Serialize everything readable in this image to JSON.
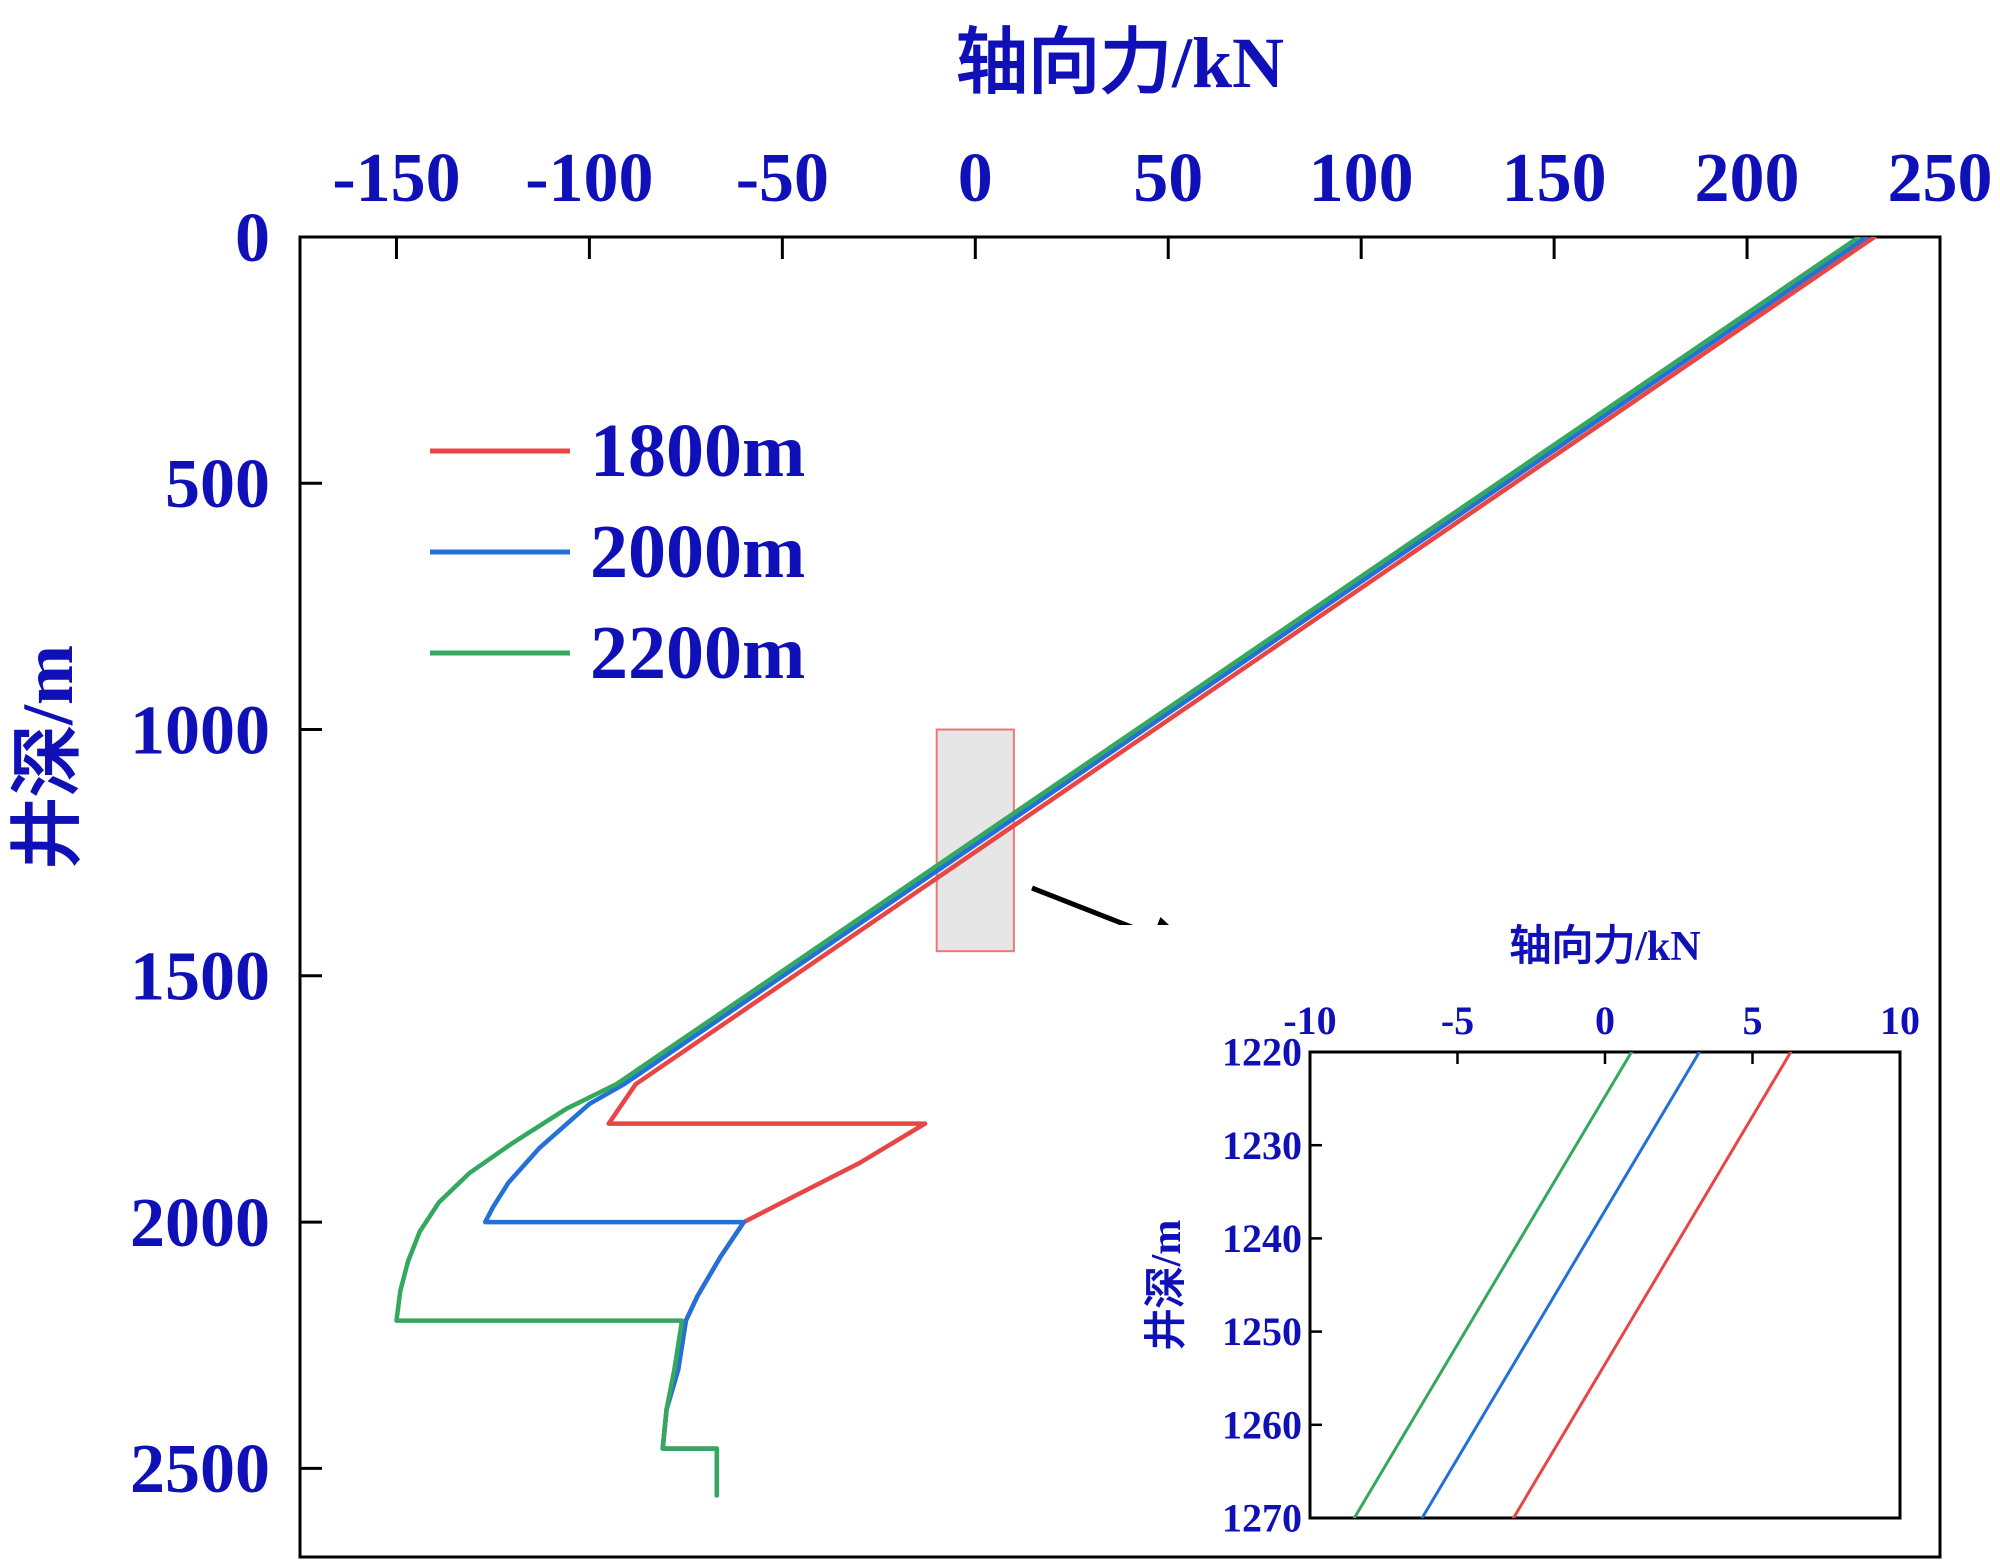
{
  "colors": {
    "axis_text": "#1010b8",
    "axis_line": "#000000",
    "series_1800": "#e84545",
    "series_2000": "#2370d8",
    "series_2200": "#35a860",
    "highlight_fill": "#e6e6e6",
    "highlight_stroke": "#ee7777",
    "arrow": "#000000"
  },
  "chart_data": [
    {
      "type": "line",
      "xlabel": "轴向力/kN",
      "ylabel": "井深/m",
      "xlim": [
        -175,
        250
      ],
      "ylim": [
        2680,
        0
      ],
      "x_axis_position": "top",
      "y_inverted": true,
      "grid": false,
      "legend_position": "upper-left",
      "x_ticks": [
        -150,
        -100,
        -50,
        0,
        50,
        100,
        150,
        200,
        250
      ],
      "x_tick_labels": [
        "-150",
        "-100",
        "-50",
        "0",
        "50",
        "100",
        "150",
        "200",
        "250"
      ],
      "y_ticks": [
        0,
        500,
        1000,
        1500,
        2000,
        2500
      ],
      "y_tick_labels": [
        "0",
        "500",
        "1000",
        "1500",
        "2000",
        "2500"
      ],
      "highlight_box": {
        "x": [
          -10,
          10
        ],
        "y": [
          1000,
          1450
        ]
      },
      "series": [
        {
          "name": "1800m",
          "color": "#e84545",
          "points": [
            [
              233,
              0
            ],
            [
              -88,
              1720
            ],
            [
              -95,
              1800
            ],
            [
              -13,
              1800
            ],
            [
              -30,
              1880
            ],
            [
              -45,
              1940
            ],
            [
              -55,
              1980
            ],
            [
              -60,
              2000
            ],
            [
              -66,
              2070
            ],
            [
              -72,
              2150
            ],
            [
              -75,
              2200
            ],
            [
              -77,
              2300
            ],
            [
              -80,
              2380
            ],
            [
              -81,
              2460
            ],
            [
              -81,
              2460
            ],
            [
              -67,
              2460
            ],
            [
              -67,
              2555
            ]
          ]
        },
        {
          "name": "2000m",
          "color": "#2370d8",
          "points": [
            [
              231,
              0
            ],
            [
              -91,
              1720
            ],
            [
              -100,
              1760
            ],
            [
              -113,
              1850
            ],
            [
              -121,
              1920
            ],
            [
              -125,
              1970
            ],
            [
              -127,
              2000
            ],
            [
              -60,
              2000
            ],
            [
              -66,
              2070
            ],
            [
              -72,
              2150
            ],
            [
              -75,
              2200
            ],
            [
              -77,
              2300
            ],
            [
              -80,
              2380
            ],
            [
              -81,
              2460
            ],
            [
              -67,
              2460
            ],
            [
              -67,
              2555
            ]
          ]
        },
        {
          "name": "2200m",
          "color": "#35a860",
          "points": [
            [
              229,
              0
            ],
            [
              -93,
              1720
            ],
            [
              -106,
              1770
            ],
            [
              -120,
              1840
            ],
            [
              -131,
              1900
            ],
            [
              -139,
              1960
            ],
            [
              -144,
              2020
            ],
            [
              -147,
              2080
            ],
            [
              -149,
              2140
            ],
            [
              -150,
              2200
            ],
            [
              -76,
              2200
            ],
            [
              -78,
              2300
            ],
            [
              -80,
              2380
            ],
            [
              -81,
              2460
            ],
            [
              -67,
              2460
            ],
            [
              -67,
              2555
            ]
          ]
        }
      ]
    },
    {
      "type": "line",
      "xlabel": "轴向力/kN",
      "ylabel": "井深/m",
      "xlim": [
        -10,
        10
      ],
      "ylim": [
        1270,
        1220
      ],
      "x_axis_position": "top",
      "y_inverted": true,
      "grid": false,
      "x_ticks": [
        -10,
        -5,
        0,
        5,
        10
      ],
      "x_tick_labels": [
        "-10",
        "-5",
        "0",
        "5",
        "10"
      ],
      "y_ticks": [
        1220,
        1230,
        1240,
        1250,
        1260,
        1270
      ],
      "y_tick_labels": [
        "1220",
        "1230",
        "1240",
        "1250",
        "1260",
        "1270"
      ],
      "series": [
        {
          "name": "1800m",
          "color": "#e84545",
          "points": [
            [
              6.3,
              1220
            ],
            [
              -3.1,
              1270
            ]
          ]
        },
        {
          "name": "2000m",
          "color": "#2370d8",
          "points": [
            [
              3.2,
              1220
            ],
            [
              -6.2,
              1270
            ]
          ]
        },
        {
          "name": "2200m",
          "color": "#35a860",
          "points": [
            [
              0.9,
              1220
            ],
            [
              -8.5,
              1270
            ]
          ]
        }
      ]
    }
  ]
}
